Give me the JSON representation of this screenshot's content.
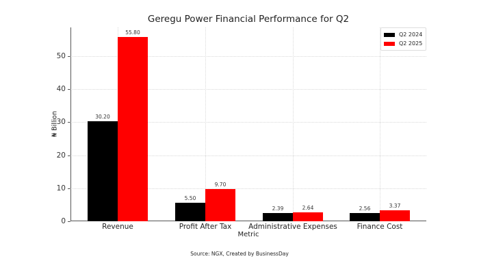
{
  "chart_data": {
    "type": "bar",
    "title": "Geregu Power Financial Performance for Q2",
    "xlabel": "Metric",
    "ylabel": "₦ Billion",
    "categories": [
      "Revenue",
      "Profit After Tax",
      "Administrative Expenses",
      "Finance Cost"
    ],
    "series": [
      {
        "name": "Q2 2024",
        "color": "#000000",
        "values": [
          30.2,
          5.5,
          2.39,
          2.56
        ],
        "labels": [
          "30.20",
          "5.50",
          "2.39",
          "2.56"
        ]
      },
      {
        "name": "Q2 2025",
        "color": "#ff0000",
        "values": [
          55.8,
          9.7,
          2.64,
          3.37
        ],
        "labels": [
          "55.80",
          "9.70",
          "2.64",
          "3.37"
        ]
      }
    ],
    "ylim": [
      0,
      58.7
    ],
    "yticks": [
      "0",
      "10",
      "20",
      "30",
      "40",
      "50"
    ],
    "grid": true,
    "legend_position": "upper right",
    "source_note": "Source: NGX, Created by BusinessDay"
  }
}
